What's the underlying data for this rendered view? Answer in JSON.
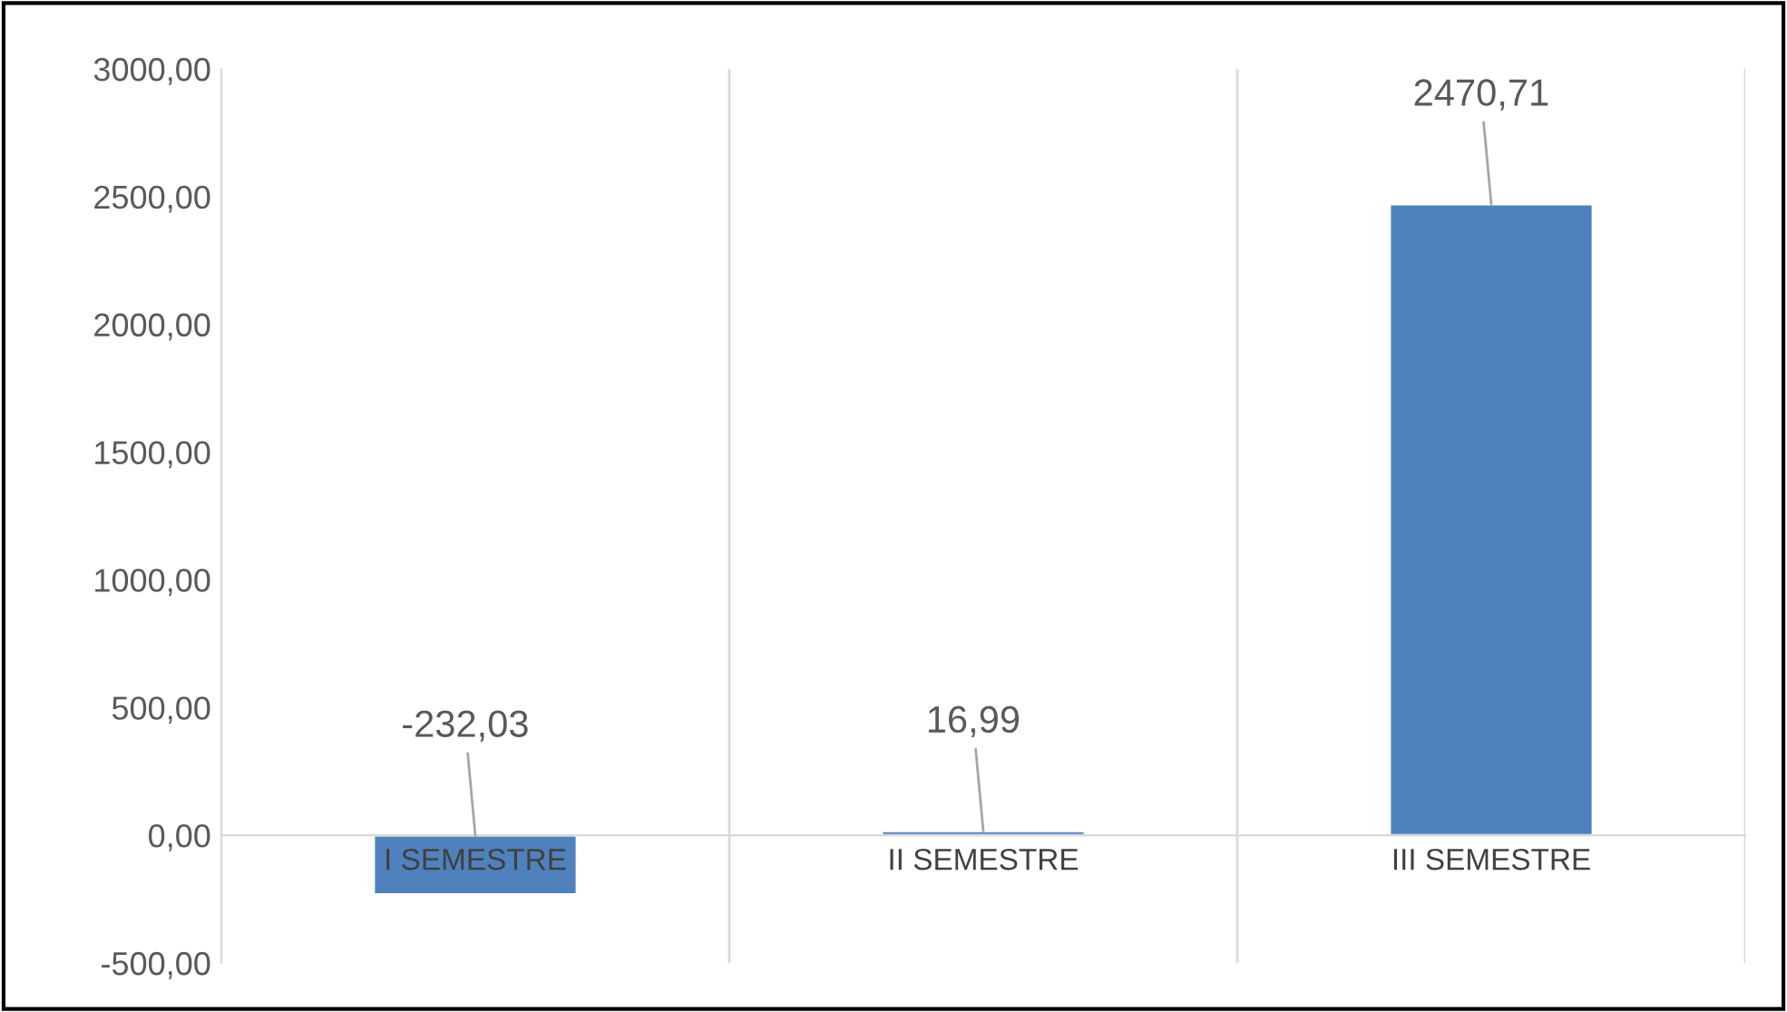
{
  "chart_data": {
    "type": "bar",
    "categories": [
      "I SEMESTRE",
      "II SEMESTRE",
      "III SEMESTRE"
    ],
    "values": [
      -232.03,
      16.99,
      2470.71
    ],
    "value_labels": [
      "-232,03",
      "16,99",
      "2470,71"
    ],
    "color": "#4f81bd",
    "ylim": [
      -500,
      3000
    ],
    "yticks": [
      {
        "value": -500,
        "label": "-500,00"
      },
      {
        "value": 0,
        "label": "0,00"
      },
      {
        "value": 500,
        "label": "500,00"
      },
      {
        "value": 1000,
        "label": "1000,00"
      },
      {
        "value": 1500,
        "label": "1500,00"
      },
      {
        "value": 2000,
        "label": "2000,00"
      },
      {
        "value": 2500,
        "label": "2500,00"
      },
      {
        "value": 3000,
        "label": "3000,00"
      }
    ],
    "grid": "x",
    "legend": false
  }
}
